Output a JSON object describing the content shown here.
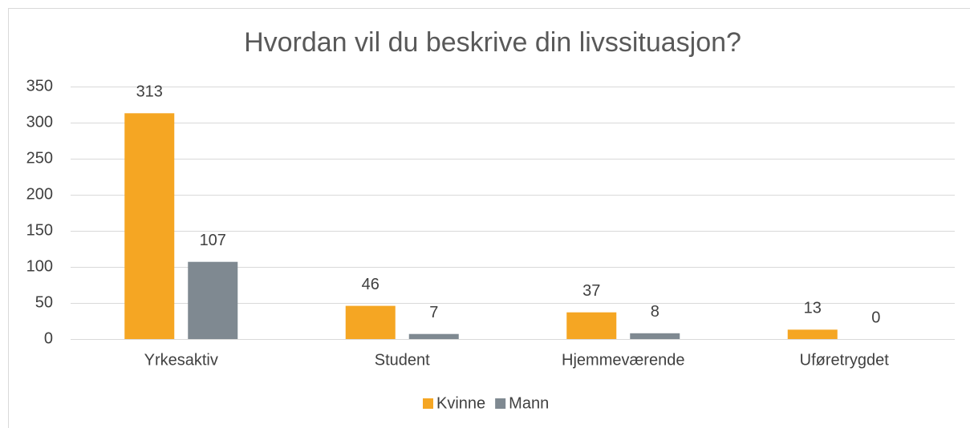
{
  "chart_data": {
    "type": "bar",
    "title": "Hvordan vil du beskrive din livssituasjon?",
    "categories": [
      "Yrkesaktiv",
      "Student",
      "Hjemmeværende",
      "Uføretrygdet"
    ],
    "series": [
      {
        "name": "Kvinne",
        "color": "#f5a623",
        "values": [
          313,
          46,
          37,
          13
        ]
      },
      {
        "name": "Mann",
        "color": "#7f8991",
        "values": [
          107,
          7,
          8,
          0
        ]
      }
    ],
    "ylim": [
      0,
      350
    ],
    "yticks": [
      0,
      50,
      100,
      150,
      200,
      250,
      300,
      350
    ],
    "grid": true,
    "legend": "bottom"
  }
}
